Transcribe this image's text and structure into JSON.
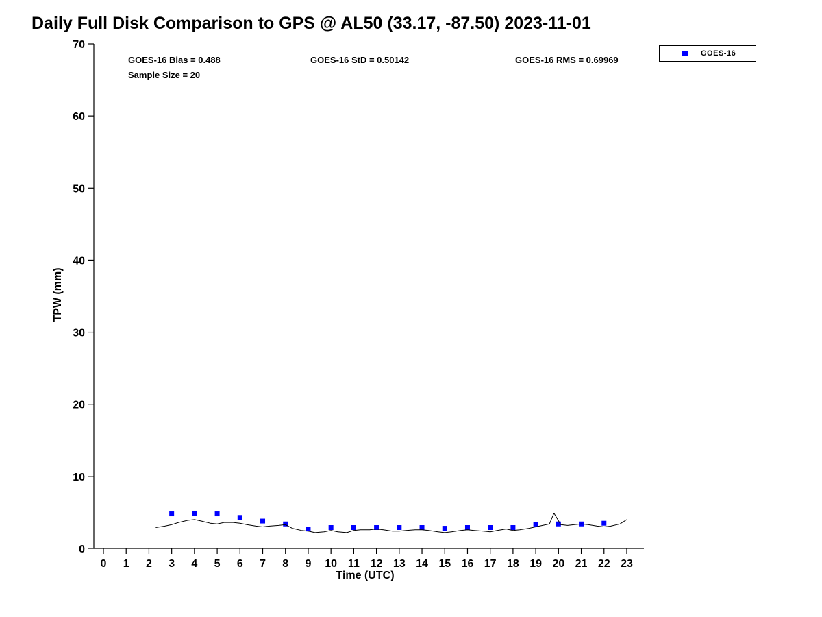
{
  "title": "Daily Full Disk Comparison to GPS @ AL50 (33.17, -87.50) 2023-11-01",
  "annotations": {
    "bias": "GOES-16 Bias = 0.488",
    "std": "GOES-16 StD = 0.50142",
    "rms": "GOES-16 RMS = 0.69969",
    "sample_size": "Sample Size = 20"
  },
  "legend": {
    "entries": [
      {
        "label": "GOES-16",
        "marker": "square",
        "color": "#0000ff"
      }
    ]
  },
  "axes": {
    "xlabel": "Time (UTC)",
    "ylabel": "TPW (mm)"
  },
  "chart_data": {
    "type": "scatter",
    "title": "Daily Full Disk Comparison to GPS @ AL50 (33.17, -87.50) 2023-11-01",
    "xlabel": "Time (UTC)",
    "ylabel": "TPW (mm)",
    "xlim": [
      -0.45,
      23.75
    ],
    "ylim": [
      0,
      70
    ],
    "xticks": [
      0,
      1,
      2,
      3,
      4,
      5,
      6,
      7,
      8,
      9,
      10,
      11,
      12,
      13,
      14,
      15,
      16,
      17,
      18,
      19,
      20,
      21,
      22,
      23
    ],
    "yticks": [
      0,
      10,
      20,
      30,
      40,
      50,
      60,
      70
    ],
    "grid": false,
    "legend_position": "top-right",
    "stats": {
      "bias": 0.488,
      "std": 0.50142,
      "rms": 0.69969,
      "sample_size": 20
    },
    "series": [
      {
        "name": "GOES-16",
        "type": "scatter",
        "marker": "square",
        "color": "#0000ff",
        "x": [
          3,
          4,
          5,
          6,
          7,
          8,
          9,
          10,
          11,
          12,
          13,
          14,
          15,
          16,
          17,
          18,
          19,
          20,
          21,
          22
        ],
        "y": [
          4.8,
          4.9,
          4.8,
          4.3,
          3.8,
          3.4,
          2.7,
          2.9,
          2.9,
          2.9,
          2.9,
          2.9,
          2.8,
          2.9,
          2.9,
          2.9,
          3.3,
          3.4,
          3.4,
          3.5
        ]
      },
      {
        "name": "GPS",
        "type": "line",
        "color": "#000000",
        "points": [
          [
            2.3,
            2.9
          ],
          [
            2.7,
            3.1
          ],
          [
            3.0,
            3.3
          ],
          [
            3.3,
            3.6
          ],
          [
            3.7,
            3.9
          ],
          [
            4.0,
            4.0
          ],
          [
            4.3,
            3.8
          ],
          [
            4.7,
            3.5
          ],
          [
            5.0,
            3.4
          ],
          [
            5.3,
            3.6
          ],
          [
            5.7,
            3.6
          ],
          [
            6.0,
            3.5
          ],
          [
            6.3,
            3.3
          ],
          [
            6.7,
            3.1
          ],
          [
            7.0,
            3.0
          ],
          [
            7.3,
            3.1
          ],
          [
            7.7,
            3.2
          ],
          [
            8.0,
            3.3
          ],
          [
            8.3,
            2.8
          ],
          [
            8.7,
            2.5
          ],
          [
            9.0,
            2.4
          ],
          [
            9.3,
            2.2
          ],
          [
            9.7,
            2.3
          ],
          [
            10.0,
            2.5
          ],
          [
            10.3,
            2.3
          ],
          [
            10.7,
            2.2
          ],
          [
            11.0,
            2.5
          ],
          [
            11.3,
            2.6
          ],
          [
            11.7,
            2.6
          ],
          [
            12.0,
            2.7
          ],
          [
            12.3,
            2.6
          ],
          [
            12.7,
            2.4
          ],
          [
            13.0,
            2.4
          ],
          [
            13.3,
            2.5
          ],
          [
            13.7,
            2.6
          ],
          [
            14.0,
            2.6
          ],
          [
            14.3,
            2.5
          ],
          [
            14.7,
            2.3
          ],
          [
            15.0,
            2.2
          ],
          [
            15.3,
            2.3
          ],
          [
            15.7,
            2.5
          ],
          [
            16.0,
            2.6
          ],
          [
            16.3,
            2.5
          ],
          [
            16.7,
            2.4
          ],
          [
            17.0,
            2.3
          ],
          [
            17.3,
            2.5
          ],
          [
            17.7,
            2.7
          ],
          [
            18.0,
            2.5
          ],
          [
            18.3,
            2.6
          ],
          [
            18.7,
            2.8
          ],
          [
            19.0,
            3.0
          ],
          [
            19.3,
            3.2
          ],
          [
            19.6,
            3.4
          ],
          [
            19.8,
            4.9
          ],
          [
            20.1,
            3.3
          ],
          [
            20.4,
            3.2
          ],
          [
            20.7,
            3.3
          ],
          [
            21.0,
            3.4
          ],
          [
            21.3,
            3.3
          ],
          [
            21.7,
            3.1
          ],
          [
            22.0,
            3.0
          ],
          [
            22.3,
            3.1
          ],
          [
            22.7,
            3.4
          ],
          [
            23.0,
            4.0
          ]
        ]
      }
    ]
  }
}
